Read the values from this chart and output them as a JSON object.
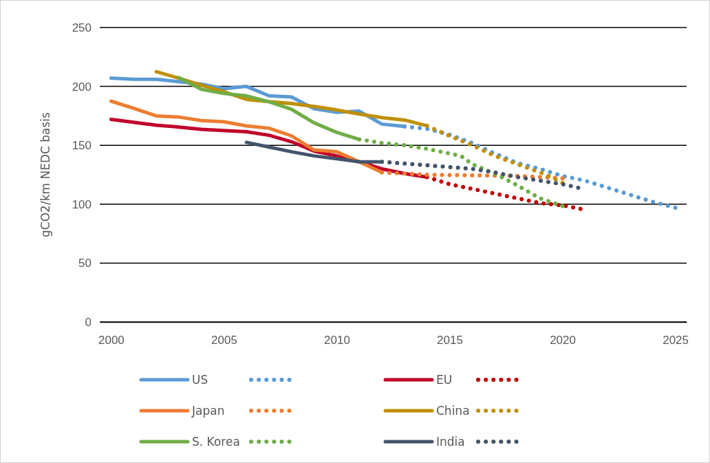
{
  "chart_data": {
    "type": "line",
    "ylabel": "gCO2/km NEDC basis",
    "xlim": [
      1999.5,
      2025.5
    ],
    "xticks": [
      2000,
      2005,
      2010,
      2015,
      2020,
      2025
    ],
    "ylim": [
      0,
      250
    ],
    "yticks": [
      0,
      50,
      100,
      150,
      200,
      250
    ],
    "grid": "y",
    "legend": "bottom",
    "marker": "none",
    "series": [
      {
        "name": "US",
        "color": "#5b9bd5",
        "line_style": "solid",
        "x": [
          2000,
          2001,
          2002,
          2003,
          2004,
          2005,
          2006,
          2007,
          2008,
          2009,
          2010,
          2011,
          2012,
          2013
        ],
        "values": [
          207,
          206,
          206,
          204,
          202,
          198,
          200,
          192,
          191,
          181,
          178,
          179,
          168,
          166
        ]
      },
      {
        "color": "#5b9bd5",
        "line_style": "dotted",
        "x": [
          2013,
          2014,
          2015,
          2016,
          2017,
          2018,
          2019,
          2020,
          2021,
          2022,
          2023,
          2024,
          2025
        ],
        "values": [
          166,
          164,
          159,
          152,
          143,
          135,
          130,
          124,
          120,
          114,
          108,
          102,
          97
        ]
      },
      {
        "name": "EU",
        "color": "#c0002a",
        "line_style": "solid",
        "x": [
          2000,
          2001,
          2002,
          2003,
          2004,
          2005,
          2006,
          2007,
          2008,
          2009,
          2010,
          2011,
          2012,
          2013,
          2014
        ],
        "values": [
          172,
          169.5,
          167,
          165.5,
          163.5,
          162.5,
          161.5,
          158.5,
          153,
          145,
          141,
          136,
          130,
          126,
          123
        ]
      },
      {
        "color": "#c00000",
        "line_style": "dotted",
        "x": [
          2014,
          2015,
          2016,
          2017,
          2018,
          2019,
          2020,
          2020.8
        ],
        "values": [
          123,
          117,
          113,
          109,
          105,
          101,
          99,
          96
        ]
      },
      {
        "name": "Japan",
        "color": "#ed7d31",
        "line_style": "solid",
        "x": [
          2000,
          2001,
          2002,
          2003,
          2004,
          2005,
          2006,
          2007,
          2008,
          2009,
          2010,
          2011,
          2012
        ],
        "values": [
          187.5,
          181.5,
          175,
          174,
          171,
          170,
          166.5,
          164.5,
          158,
          146,
          144.5,
          136,
          127
        ]
      },
      {
        "color": "#ed7d31",
        "line_style": "dotted",
        "x": [
          2012,
          2014,
          2016,
          2018,
          2020
        ],
        "values": [
          127,
          125,
          124.5,
          124,
          122
        ]
      },
      {
        "name": "China",
        "color": "#bf9000",
        "line_style": "solid",
        "x": [
          2002,
          2003,
          2004,
          2005,
          2006,
          2007,
          2008,
          2009,
          2010,
          2011,
          2012,
          2013,
          2014
        ],
        "values": [
          212.5,
          207,
          201,
          195.5,
          189,
          187,
          185.5,
          183,
          180,
          176.5,
          173.5,
          171.5,
          166.5
        ]
      },
      {
        "color": "#bf9000",
        "line_style": "dotted",
        "x": [
          2014,
          2015,
          2016,
          2017,
          2018,
          2019,
          2019.5,
          2020
        ],
        "values": [
          166.5,
          158,
          150,
          141,
          134,
          127,
          123,
          118
        ]
      },
      {
        "name": "S. Korea",
        "color": "#70ad47",
        "line_style": "solid",
        "x": [
          2003,
          2004,
          2005,
          2006,
          2007,
          2008,
          2009,
          2010,
          2011
        ],
        "values": [
          207.5,
          197.5,
          194,
          192,
          187,
          180.5,
          169,
          161,
          155
        ]
      },
      {
        "color": "#70ad47",
        "line_style": "dotted",
        "x": [
          2011,
          2012,
          2013,
          2014,
          2015,
          2015.5,
          2016,
          2017,
          2018,
          2019,
          2020
        ],
        "values": [
          155,
          152,
          150,
          147,
          143,
          141,
          134,
          126,
          116,
          105,
          98.5
        ]
      },
      {
        "name": "India",
        "color": "#44546a",
        "line_style": "solid",
        "x": [
          2006,
          2007,
          2008,
          2009,
          2010,
          2011,
          2012
        ],
        "values": [
          152.5,
          148.5,
          144.5,
          141,
          138.5,
          136,
          136
        ]
      },
      {
        "color": "#44546a",
        "line_style": "dotted",
        "x": [
          2012,
          2014,
          2016,
          2017,
          2018,
          2019,
          2020,
          2020.7
        ],
        "values": [
          136,
          133,
          130,
          127,
          123,
          120,
          117,
          114
        ]
      }
    ]
  }
}
